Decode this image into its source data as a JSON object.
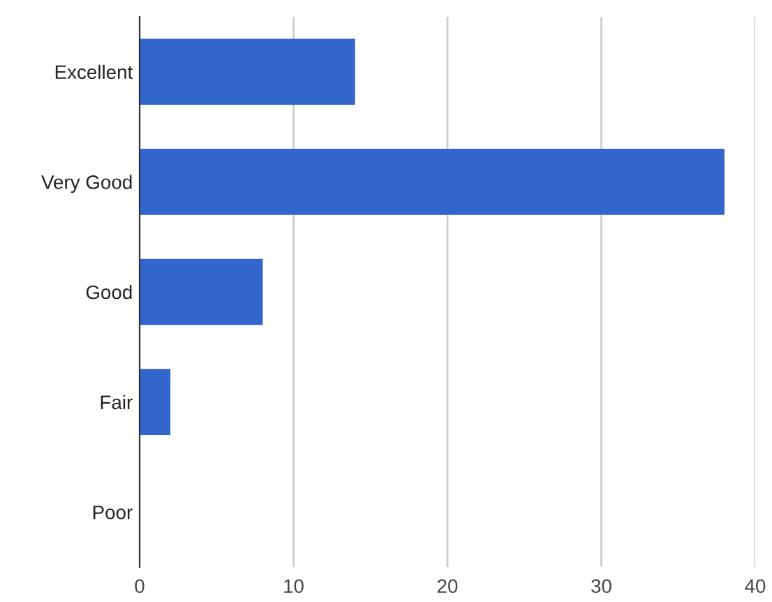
{
  "chart_data": {
    "type": "bar",
    "orientation": "horizontal",
    "categories": [
      "Excellent",
      "Very Good",
      "Good",
      "Fair",
      "Poor"
    ],
    "values": [
      14,
      38,
      8,
      2,
      0
    ],
    "color": "#3366cc",
    "xlim": [
      0,
      40
    ],
    "xticks": [
      0,
      10,
      20,
      30,
      40
    ],
    "grid": "x"
  }
}
